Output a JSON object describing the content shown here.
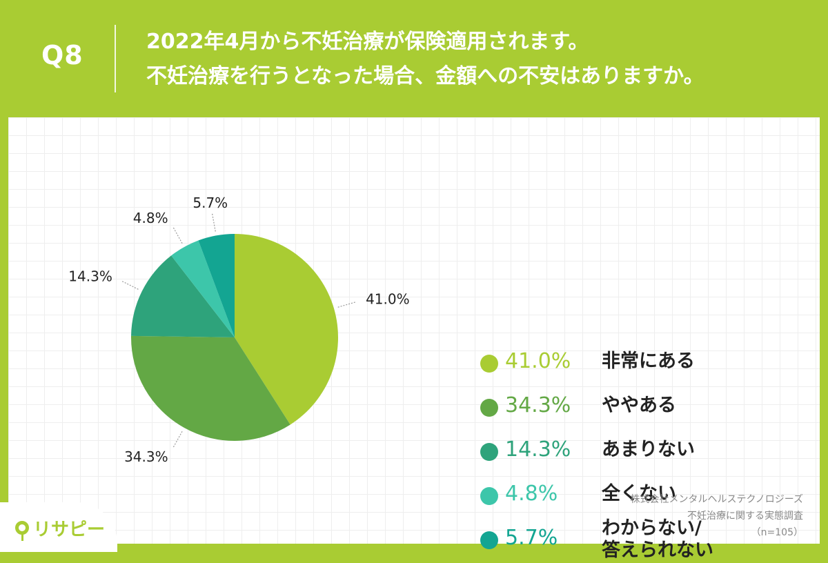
{
  "header": {
    "q_label": "Q8",
    "title_line1": "2022年4月から不妊治療が保険適用されます。",
    "title_line2": "不妊治療を行うとなった場合、金額への不安はありますか。"
  },
  "chart_data": {
    "type": "pie",
    "title": "2022年4月から不妊治療が保険適用されます。不妊治療を行うとなった場合、金額への不安はありますか。",
    "labels": [
      "非常にある",
      "ややある",
      "あまりない",
      "全くない",
      "わからない/\n答えられない"
    ],
    "values": [
      41.0,
      34.3,
      14.3,
      4.8,
      5.7
    ],
    "value_labels": [
      "41.0%",
      "34.3%",
      "14.3%",
      "4.8%",
      "5.7%"
    ],
    "colors": [
      "#a9cc33",
      "#63a845",
      "#2ea37b",
      "#3dc6aa",
      "#13a592"
    ],
    "start": "12 o'clock, clockwise",
    "legend_position": "right"
  },
  "source": {
    "line1": "株式会社メンタルヘルステクノロジーズ",
    "line2": "不妊治療に関する実態調査",
    "line3": "（n=105）"
  },
  "brand": {
    "logo_text": "リサピー"
  }
}
